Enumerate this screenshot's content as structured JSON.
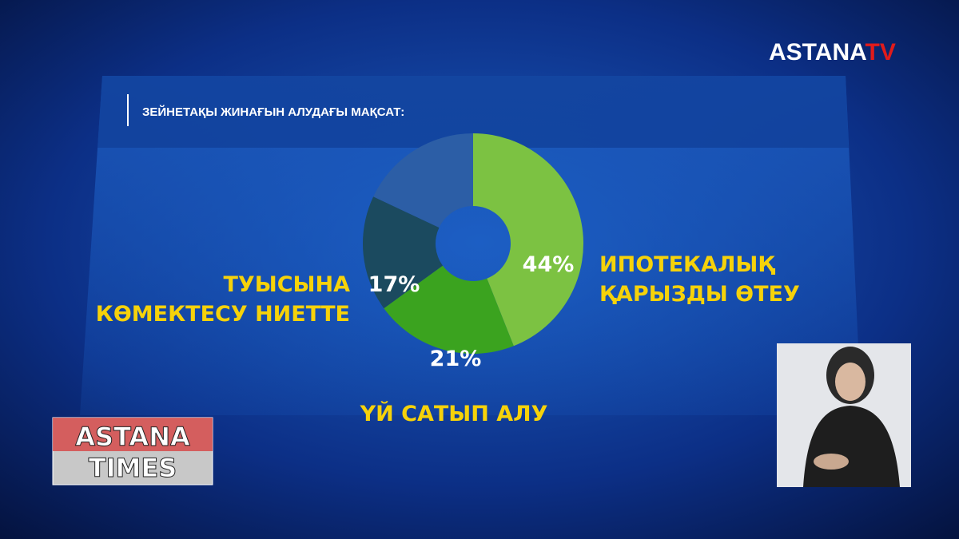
{
  "channel": {
    "name": "ASTANA",
    "suffix": "TV"
  },
  "program": {
    "line1": "ASTANA",
    "line2": "TIMES"
  },
  "chart_data": {
    "type": "donut",
    "title": "ЗЕЙНЕТАҚЫ ЖИНАҒЫН АЛУДАҒЫ МАҚСАТ:",
    "categories": [
      "ИПОТЕКАЛЫҚ\nҚАРЫЗДЫ ӨТЕУ",
      "ҮЙ САТЫП АЛУ",
      "ТУЫСЫНА\nКӨМЕКТЕСУ НИЕТТЕ",
      null
    ],
    "values": [
      44,
      21,
      17,
      18
    ],
    "value_labels": [
      "44%",
      "21%",
      "17%",
      null
    ],
    "colors": [
      "#7cc242",
      "#3ba31f",
      "#1b4a5f",
      "#2c5ea6"
    ]
  }
}
